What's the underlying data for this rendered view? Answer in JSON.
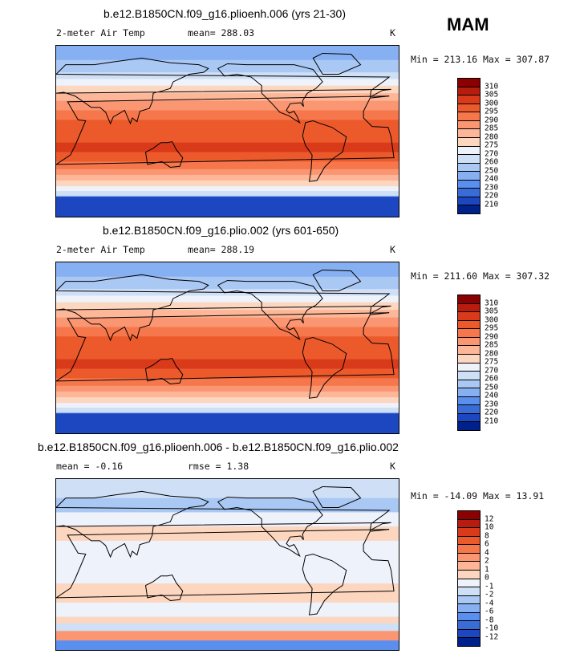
{
  "season": "MAM",
  "panels": [
    {
      "title": "b.e12.B1850CN.f09_g16.plioenh.006 (yrs 21-30)",
      "left_label": "2-meter Air Temp",
      "mid_label": "mean= 288.03",
      "unit": "K",
      "minmax": "Min = 213.16 Max = 307.87",
      "colorbar_labels": [
        "310",
        "305",
        "300",
        "295",
        "290",
        "285",
        "280",
        "275",
        "270",
        "260",
        "250",
        "240",
        "230",
        "220",
        "210"
      ],
      "colors": [
        "#8b0000",
        "#b81c0e",
        "#d93a1a",
        "#ec5a2c",
        "#f6774b",
        "#fb9673",
        "#fdb697",
        "#fdd6bf",
        "#eef2fa",
        "#cfdff6",
        "#aac8f4",
        "#86b0f2",
        "#5a8ff0",
        "#3a6cd8",
        "#1d47c0",
        "#00218a"
      ]
    },
    {
      "title": "b.e12.B1850CN.f09_g16.plio.002 (yrs 601-650)",
      "left_label": "2-meter Air Temp",
      "mid_label": "mean= 288.19",
      "unit": "K",
      "minmax": "Min = 211.60 Max = 307.32",
      "colorbar_labels": [
        "310",
        "305",
        "300",
        "295",
        "290",
        "285",
        "280",
        "275",
        "270",
        "260",
        "250",
        "240",
        "230",
        "220",
        "210"
      ],
      "colors": [
        "#8b0000",
        "#b81c0e",
        "#d93a1a",
        "#ec5a2c",
        "#f6774b",
        "#fb9673",
        "#fdb697",
        "#fdd6bf",
        "#eef2fa",
        "#cfdff6",
        "#aac8f4",
        "#86b0f2",
        "#5a8ff0",
        "#3a6cd8",
        "#1d47c0",
        "#00218a"
      ]
    },
    {
      "title": "b.e12.B1850CN.f09_g16.plioenh.006 - b.e12.B1850CN.f09_g16.plio.002",
      "left_label": "mean =   -0.16",
      "mid_label": "rmse =    1.38",
      "unit": "K",
      "minmax": "Min = -14.09 Max =  13.91",
      "colorbar_labels": [
        "12",
        "10",
        "8",
        "6",
        "4",
        "2",
        "1",
        "0",
        "-1",
        "-2",
        "-4",
        "-6",
        "-8",
        "-10",
        "-12"
      ],
      "colors": [
        "#8b0000",
        "#b81c0e",
        "#d93a1a",
        "#ec5a2c",
        "#f6774b",
        "#fb9673",
        "#fdb697",
        "#fdd6bf",
        "#eef2fa",
        "#cfdff6",
        "#aac8f4",
        "#86b0f2",
        "#5a8ff0",
        "#3a6cd8",
        "#1d47c0",
        "#00218a"
      ]
    }
  ]
}
